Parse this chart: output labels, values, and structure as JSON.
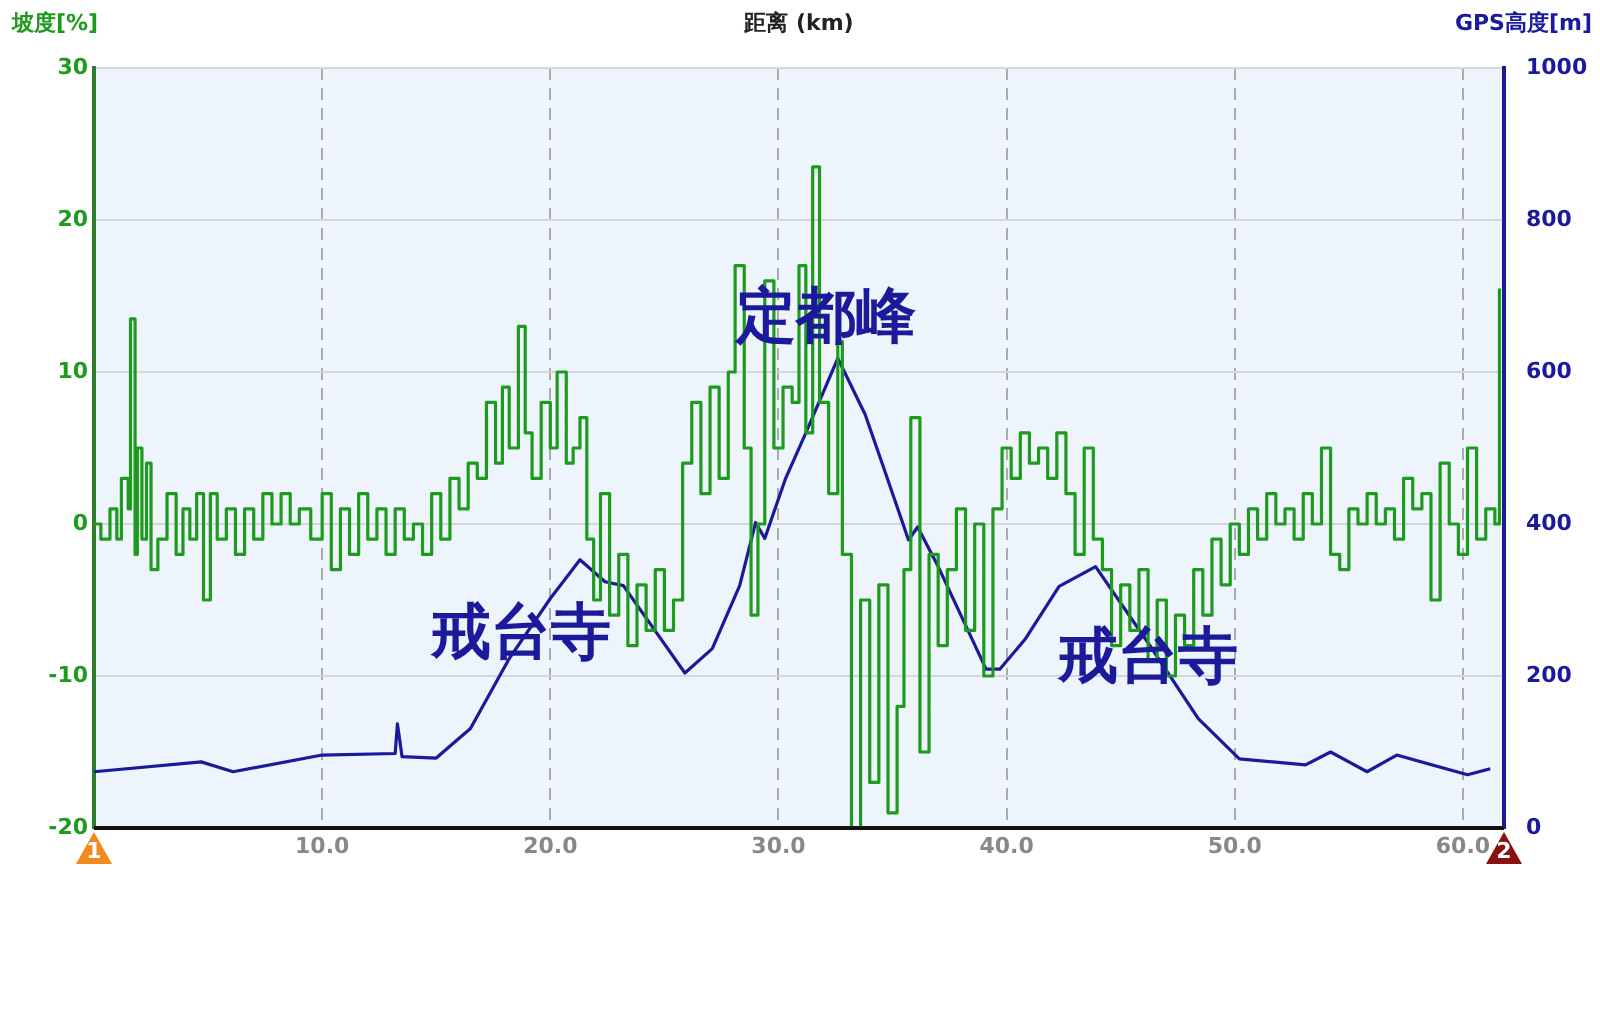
{
  "chart_data": {
    "type": "line",
    "xlabel": "距离 (km)",
    "ylabel": "坡度[%]",
    "y2label": "GPS高度[m]",
    "xlim": [
      0,
      61.8
    ],
    "xticks": [
      {
        "value": 10,
        "label": "10.0"
      },
      {
        "value": 20,
        "label": "20.0"
      },
      {
        "value": 30,
        "label": "30.0"
      },
      {
        "value": 40,
        "label": "40.0"
      },
      {
        "value": 50,
        "label": "50.0"
      },
      {
        "value": 60,
        "label": "60.0"
      }
    ],
    "ylim": [
      -20,
      30
    ],
    "yticks": [
      -20,
      -10,
      0,
      10,
      20,
      30
    ],
    "y2lim": [
      0,
      1000
    ],
    "y2ticks": [
      0,
      200,
      400,
      600,
      800,
      1000
    ],
    "grid": true,
    "legend": false,
    "annotations": [
      {
        "text": "定都峰",
        "x": 32.1,
        "y": 13.4
      },
      {
        "text": "戒台寺",
        "x": 18.7,
        "y": -7.4
      },
      {
        "text": "戒台寺",
        "x": 46.2,
        "y": -9
      },
      "1",
      "2"
    ],
    "series": [
      {
        "type": "step",
        "color": "#1e9a1e",
        "x": [
          0,
          0.3,
          0.7,
          1.0,
          1.2,
          1.5,
          1.6,
          1.8,
          1.9,
          2.1,
          2.3,
          2.5,
          2.8,
          3.2,
          3.6,
          3.9,
          4.2,
          4.5,
          4.8,
          5.1,
          5.4,
          5.8,
          6.2,
          6.6,
          7.0,
          7.4,
          7.8,
          8.2,
          8.6,
          9.0,
          9.5,
          10.0,
          10.4,
          10.8,
          11.2,
          11.6,
          12.0,
          12.4,
          12.8,
          13.2,
          13.6,
          14.0,
          14.4,
          14.8,
          15.2,
          15.6,
          16.0,
          16.4,
          16.8,
          17.2,
          17.6,
          17.9,
          18.2,
          18.6,
          18.9,
          19.2,
          19.6,
          20.0,
          20.3,
          20.7,
          21.0,
          21.3,
          21.6,
          21.9,
          22.2,
          22.6,
          23.0,
          23.4,
          23.8,
          24.2,
          24.6,
          25.0,
          25.4,
          25.8,
          26.2,
          26.6,
          27.0,
          27.4,
          27.8,
          28.1,
          28.5,
          28.8,
          29.1,
          29.4,
          29.8,
          30.2,
          30.6,
          30.9,
          31.2,
          31.5,
          31.8,
          32.2,
          32.6,
          32.8,
          33.2,
          33.6,
          34.0,
          34.4,
          34.8,
          35.2,
          35.5,
          35.8,
          36.2,
          36.6,
          37.0,
          37.4,
          37.8,
          38.2,
          38.6,
          39.0,
          39.4,
          39.8,
          40.2,
          40.6,
          41.0,
          41.4,
          41.8,
          42.2,
          42.6,
          43.0,
          43.4,
          43.8,
          44.2,
          44.6,
          45.0,
          45.4,
          45.8,
          46.2,
          46.6,
          47.0,
          47.4,
          47.8,
          48.2,
          48.6,
          49.0,
          49.4,
          49.8,
          50.2,
          50.6,
          51.0,
          51.4,
          51.8,
          52.2,
          52.6,
          53.0,
          53.4,
          53.8,
          54.2,
          54.6,
          55.0,
          55.4,
          55.8,
          56.2,
          56.6,
          57.0,
          57.4,
          57.8,
          58.2,
          58.6,
          59.0,
          59.4,
          59.8,
          60.2,
          60.6,
          61.0,
          61.4,
          61.6
        ],
        "values": [
          0,
          -1,
          1,
          -1,
          3,
          1,
          13.5,
          -2,
          5,
          -1,
          4,
          -3,
          -1,
          2,
          -2,
          1,
          -1,
          2,
          -5,
          2,
          -1,
          1,
          -2,
          1,
          -1,
          2,
          0,
          2,
          0,
          1,
          -1,
          2,
          -3,
          1,
          -2,
          2,
          -1,
          1,
          -2,
          1,
          -1,
          0,
          -2,
          2,
          -1,
          3,
          1,
          4,
          3,
          8,
          4,
          9,
          5,
          13,
          6,
          3,
          8,
          5,
          10,
          4,
          5,
          7,
          -1,
          -5,
          2,
          -6,
          -2,
          -8,
          -4,
          -7,
          -3,
          -7,
          -5,
          4,
          8,
          2,
          9,
          3,
          10,
          17,
          5,
          -6,
          0,
          16,
          5,
          9,
          8,
          17,
          6,
          23.5,
          8,
          2,
          12,
          -2,
          -20,
          -5,
          -17,
          -4,
          -19,
          -12,
          -3,
          7,
          -15,
          -2,
          -8,
          -3,
          1,
          -7,
          0,
          -10,
          1,
          5,
          3,
          6,
          4,
          5,
          3,
          6,
          2,
          -2,
          5,
          -1,
          -3,
          -8,
          -4,
          -7,
          -3,
          -9,
          -5,
          -10,
          -6,
          -8,
          -3,
          -6,
          -1,
          -4,
          0,
          -2,
          1,
          -1,
          2,
          0,
          1,
          -1,
          2,
          0,
          5,
          -2,
          -3,
          1,
          0,
          2,
          0,
          1,
          -1,
          3,
          1,
          2,
          -5,
          4,
          0,
          -2,
          5,
          -1,
          1,
          0,
          15.5
        ]
      },
      {
        "type": "line",
        "axis": "y2",
        "color": "#1a1a9a",
        "x": [
          0,
          4.7,
          6.1,
          10,
          13.2,
          13.3,
          13.5,
          15,
          16.5,
          18.2,
          20,
          21.3,
          22.4,
          23.2,
          25.9,
          27.1,
          28.3,
          29,
          29.4,
          30.3,
          31.2,
          32.6,
          33.8,
          34.6,
          35.7,
          36.1,
          37,
          39.1,
          39.7,
          40.8,
          42.3,
          43.9,
          46.1,
          48.4,
          50.2,
          53.1,
          54.2,
          55.8,
          57.1,
          60.2,
          61.2
        ],
        "values": [
          74,
          87,
          74,
          96,
          98,
          137,
          94,
          92,
          131,
          223,
          302,
          353,
          324,
          319,
          204,
          236,
          319,
          402,
          381,
          459,
          520,
          618,
          544,
          475,
          379,
          396,
          344,
          209,
          209,
          248,
          318,
          344,
          248,
          144,
          91,
          83,
          100,
          74,
          96,
          70,
          78
        ]
      }
    ]
  }
}
